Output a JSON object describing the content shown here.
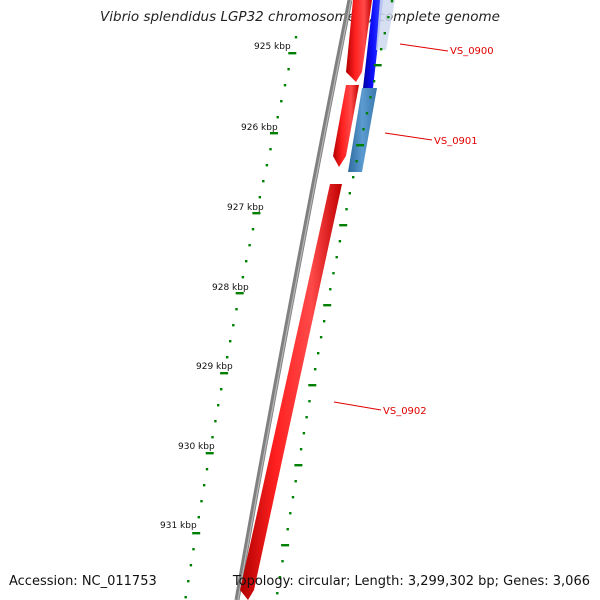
{
  "title": "Vibrio splendidus LGP32 chromosome 1, complete genome",
  "accession": "Accession: NC_011753",
  "topology": "Topology: circular; Length: 3,299,302 bp; Genes: 3,066",
  "ruler_labels": [
    "925 kbp",
    "926 kbp",
    "927 kbp",
    "928 kbp",
    "929 kbp",
    "930 kbp",
    "931 kbp"
  ],
  "genes": [
    {
      "name": "VS_0900",
      "strand": "forward",
      "color": "#ff0000"
    },
    {
      "name": "VS_0901",
      "strand": "forward",
      "color": "#ff0000"
    },
    {
      "name": "VS_0902",
      "strand": "forward",
      "color": "#ff0000"
    }
  ],
  "colors": {
    "backbone": "#808080",
    "forward_cds": "#ff0000",
    "reverse_cds_a": "#0000ee",
    "reverse_cds_b": "#4682b4",
    "ticks": "#008000",
    "labels": "#e00000"
  }
}
